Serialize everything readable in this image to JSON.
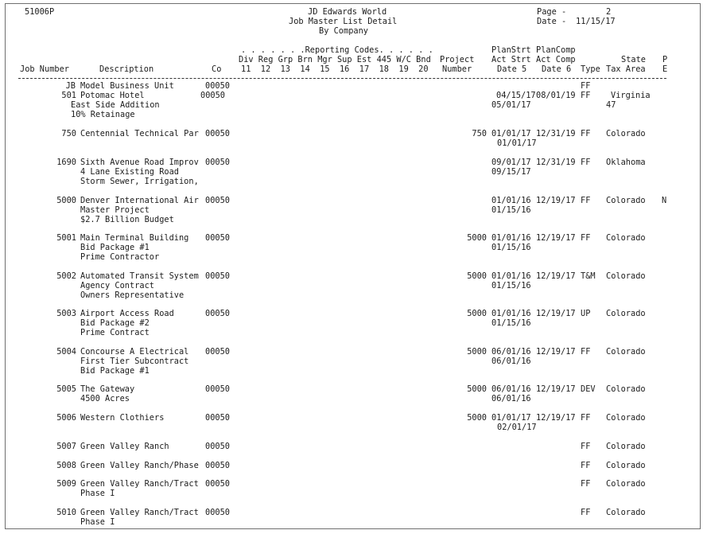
{
  "report_header": {
    "program_id": "51006P",
    "company_name": "JD Edwards World",
    "report_title": "Job Master List Detail",
    "report_subtitle": "By Company",
    "page_label": "Page -",
    "page_number": "2",
    "date_label": "Date -",
    "date_value": "11/15/17"
  },
  "column_headers": {
    "row1": ". . . . . . .Reporting Codes. . . . . .",
    "plan_start": "PlanStrt",
    "plan_comp": "PlanComp",
    "row2_codes": "Div Reg Grp Brn Mgr Sup Est 445 W/C Bnd",
    "project": "Project",
    "act_start": "Act Strt",
    "act_comp": "Act Comp",
    "job_number": "Job Number",
    "description": "Description",
    "co": "Co",
    "row3_codes": "11  12  13  14  15  16  17  18  19  20",
    "number": "Number",
    "date5": "Date 5",
    "date6": "Date 6",
    "type": "Type",
    "state": "State",
    "tax_area": "Tax Area",
    "p": "P",
    "e": "E"
  },
  "rows": [
    {
      "job": "JB",
      "desc": "Model Business Unit",
      "co": "00050",
      "project": "",
      "start": "",
      "comp": "",
      "type": "FF",
      "state": "",
      "flag": "",
      "line2": "",
      "start2": "",
      "line3": ""
    },
    {
      "job": "501",
      "desc": "Potomac Hotel",
      "co": "00050",
      "project": "",
      "start": "04/15/17",
      "comp": "08/01/19",
      "type": "FF",
      "state": "Virginia",
      "flag": "",
      "line2": "East Side Addition",
      "start2": "05/01/17",
      "tax2": "47",
      "line3": "10% Retainage"
    },
    {
      "job": "750",
      "desc": "Centennial Technical Par",
      "co": "00050",
      "project": "750",
      "start": "01/01/17",
      "comp": "12/31/19",
      "type": "FF",
      "state": "Colorado",
      "flag": "",
      "line2": "",
      "start2": "01/01/17",
      "line3": ""
    },
    {
      "job": "1690",
      "desc": "Sixth Avenue Road Improv",
      "co": "00050",
      "project": "",
      "start": "09/01/17",
      "comp": "12/31/19",
      "type": "FF",
      "state": "Oklahoma",
      "flag": "",
      "line2": "4 Lane Existing Road",
      "start2": "09/15/17",
      "line3": "Storm Sewer, Irrigation,"
    },
    {
      "job": "5000",
      "desc": "Denver International Air",
      "co": "00050",
      "project": "",
      "start": "01/01/16",
      "comp": "12/19/17",
      "type": "FF",
      "state": "Colorado",
      "flag": "N",
      "line2": "Master Project",
      "start2": "01/15/16",
      "line3": "$2.7 Billion Budget"
    },
    {
      "job": "5001",
      "desc": "Main Terminal Building",
      "co": "00050",
      "project": "5000",
      "start": "01/01/16",
      "comp": "12/19/17",
      "type": "FF",
      "state": "Colorado",
      "flag": "",
      "line2": "Bid Package #1",
      "start2": "01/15/16",
      "line3": "Prime Contractor"
    },
    {
      "job": "5002",
      "desc": "Automated Transit System",
      "co": "00050",
      "project": "5000",
      "start": "01/01/16",
      "comp": "12/19/17",
      "type": "T&M",
      "state": "Colorado",
      "flag": "",
      "line2": "Agency Contract",
      "start2": "01/15/16",
      "line3": "Owners Representative"
    },
    {
      "job": "5003",
      "desc": "Airport Access Road",
      "co": "00050",
      "project": "5000",
      "start": "01/01/16",
      "comp": "12/19/17",
      "type": "UP",
      "state": "Colorado",
      "flag": "",
      "line2": "Bid Package #2",
      "start2": "01/15/16",
      "line3": "Prime Contract"
    },
    {
      "job": "5004",
      "desc": "Concourse A Electrical",
      "co": "00050",
      "project": "5000",
      "start": "06/01/16",
      "comp": "12/19/17",
      "type": "FF",
      "state": "Colorado",
      "flag": "",
      "line2": "First Tier Subcontract",
      "start2": "06/01/16",
      "line3": "Bid Package #1"
    },
    {
      "job": "5005",
      "desc": "The Gateway",
      "co": "00050",
      "project": "5000",
      "start": "06/01/16",
      "comp": "12/19/17",
      "type": "DEV",
      "state": "Colorado",
      "flag": "",
      "line2": "4500 Acres",
      "start2": "06/01/16",
      "line3": ""
    },
    {
      "job": "5006",
      "desc": "Western Clothiers",
      "co": "00050",
      "project": "5000",
      "start": "01/01/17",
      "comp": "12/19/17",
      "type": "FF",
      "state": "Colorado",
      "flag": "",
      "line2": "",
      "start2": "02/01/17",
      "line3": ""
    },
    {
      "job": "5007",
      "desc": "Green Valley Ranch",
      "co": "00050",
      "project": "",
      "start": "",
      "comp": "",
      "type": "FF",
      "state": "Colorado",
      "flag": "",
      "line2": "",
      "start2": "",
      "line3": ""
    },
    {
      "job": "5008",
      "desc": "Green Valley Ranch/Phase",
      "co": "00050",
      "project": "",
      "start": "",
      "comp": "",
      "type": "FF",
      "state": "Colorado",
      "flag": "",
      "line2": "",
      "start2": "",
      "line3": ""
    },
    {
      "job": "5009",
      "desc": "Green Valley Ranch/Tract",
      "co": "00050",
      "project": "",
      "start": "",
      "comp": "",
      "type": "FF",
      "state": "Colorado",
      "flag": "",
      "line2": "Phase I",
      "start2": "",
      "line3": ""
    },
    {
      "job": "5010",
      "desc": "Green Valley Ranch/Tract",
      "co": "00050",
      "project": "",
      "start": "",
      "comp": "",
      "type": "FF",
      "state": "Colorado",
      "flag": "",
      "line2": "Phase I",
      "start2": "",
      "line3": ""
    }
  ]
}
